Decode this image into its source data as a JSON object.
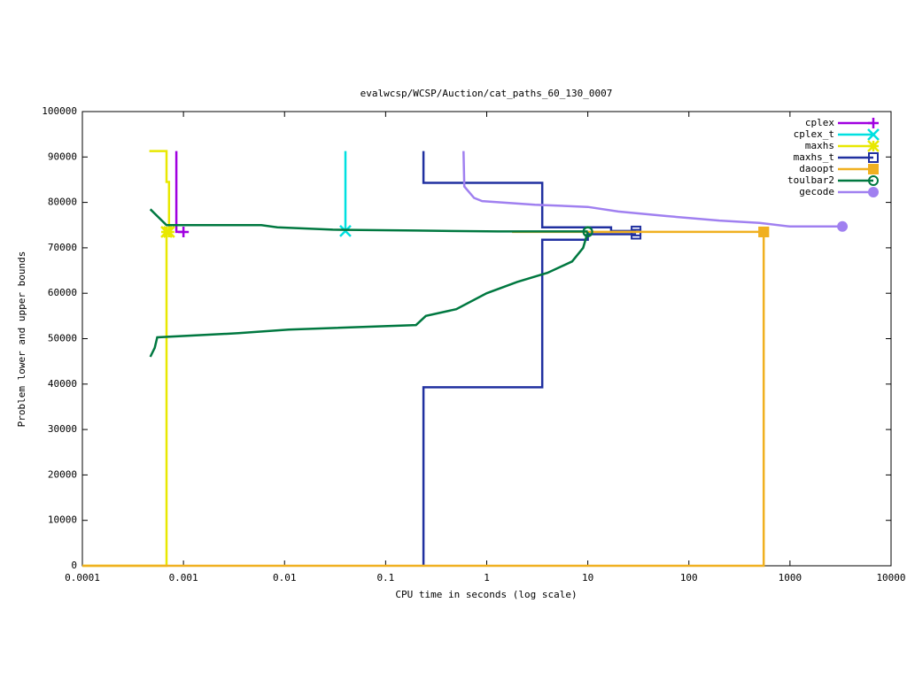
{
  "chart_data": {
    "type": "line",
    "title": "evalwcsp/WCSP/Auction/cat_paths_60_130_0007",
    "xlabel": "CPU time in seconds (log scale)",
    "ylabel": "Problem lower and upper bounds",
    "xscale": "log",
    "xlim": [
      0.0001,
      10000
    ],
    "xticks": [
      0.0001,
      0.001,
      0.01,
      0.1,
      1,
      10,
      100,
      1000,
      10000
    ],
    "ylim": [
      0,
      100000
    ],
    "yticks": [
      0,
      10000,
      20000,
      30000,
      40000,
      50000,
      60000,
      70000,
      80000,
      90000,
      100000
    ],
    "legend": "top-right",
    "series": [
      {
        "name": "cplex",
        "color": "#a000e0",
        "marker": "plus",
        "x": [
          0.00085,
          0.00085,
          0.001
        ],
        "values": [
          91300,
          73500,
          73500
        ]
      },
      {
        "name": "cplex_t",
        "color": "#00e0e0",
        "marker": "cross",
        "x": [
          0.04,
          0.04
        ],
        "values": [
          91300,
          73700
        ]
      },
      {
        "name": "maxhs",
        "color": "#e8e800",
        "marker": "star",
        "x": [
          0.00046,
          0.00068,
          0.00068,
          0.00072,
          0.00072,
          null,
          0.0001,
          0.00068,
          0.00068
        ],
        "values": [
          91300,
          91300,
          84500,
          84500,
          73500,
          null,
          0,
          0,
          73500
        ]
      },
      {
        "name": "maxhs_t",
        "color": "#2030a0",
        "marker": "square-open",
        "x": [
          0.237,
          0.237,
          3.54,
          3.54,
          17,
          17,
          30,
          null,
          0.237,
          0.237,
          3.54,
          3.54,
          10,
          10,
          30
        ],
        "values": [
          91300,
          84300,
          84300,
          74500,
          74500,
          73700,
          73700,
          null,
          0,
          39300,
          39300,
          71800,
          71800,
          73000,
          73000
        ]
      },
      {
        "name": "daoopt",
        "color": "#f0b020",
        "marker": "square",
        "x": [
          1.78,
          550,
          null,
          0.0001,
          550,
          550
        ],
        "values": [
          73500,
          73500,
          null,
          0,
          0,
          73500
        ]
      },
      {
        "name": "toulbar2",
        "color": "#007840",
        "marker": "circle-open",
        "x": [
          0.00047,
          0.00055,
          0.00068,
          0.0059,
          0.0085,
          0.03,
          0.2,
          1.3,
          10,
          null,
          0.00047,
          0.00052,
          0.00055,
          0.0035,
          0.011,
          0.2,
          0.25,
          0.5,
          1,
          2,
          4,
          7,
          9,
          10
        ],
        "values": [
          78500,
          77000,
          75000,
          75000,
          74500,
          74000,
          73800,
          73600,
          73600,
          null,
          46000,
          48000,
          50300,
          51200,
          52000,
          53000,
          55000,
          56500,
          60000,
          62500,
          64500,
          67000,
          70000,
          73500
        ]
      },
      {
        "name": "gecode",
        "color": "#a080f0",
        "marker": "circle",
        "x": [
          0.59,
          0.6,
          0.75,
          0.9,
          3,
          10,
          20,
          60,
          200,
          500,
          1000,
          3300
        ],
        "values": [
          91300,
          83500,
          81000,
          80300,
          79500,
          79000,
          78000,
          77000,
          76000,
          75500,
          74700,
          74700
        ]
      }
    ]
  }
}
